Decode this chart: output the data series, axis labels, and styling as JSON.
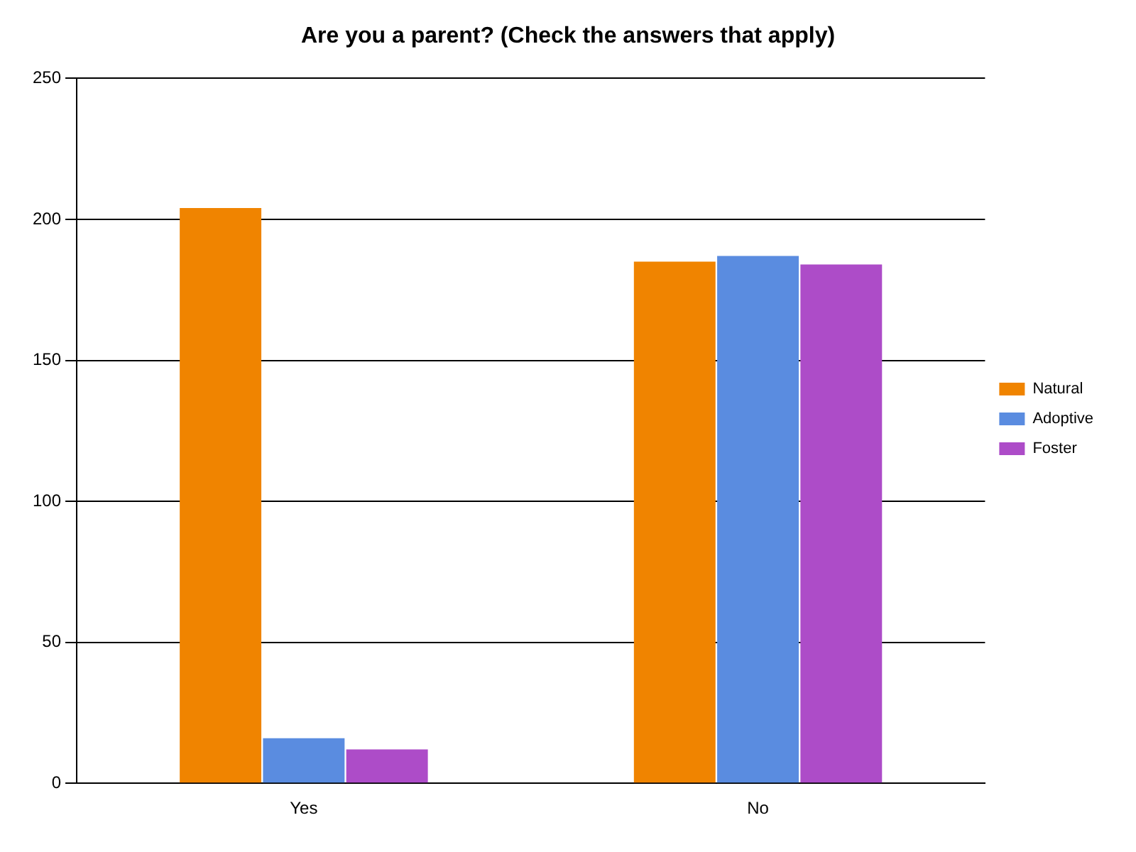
{
  "chart_data": {
    "type": "bar",
    "title": "Are you a parent? (Check the answers that apply)",
    "categories": [
      "Yes",
      "No"
    ],
    "series": [
      {
        "name": "Natural",
        "color": "#f08400",
        "values": [
          204,
          185
        ]
      },
      {
        "name": "Adoptive",
        "color": "#5a8ce0",
        "values": [
          16,
          187
        ]
      },
      {
        "name": "Foster",
        "color": "#ad4cc8",
        "values": [
          12,
          184
        ]
      }
    ],
    "ylim": [
      0,
      250
    ],
    "yticks": [
      0,
      50,
      100,
      150,
      200,
      250
    ],
    "grid": "y",
    "legend": "right"
  }
}
